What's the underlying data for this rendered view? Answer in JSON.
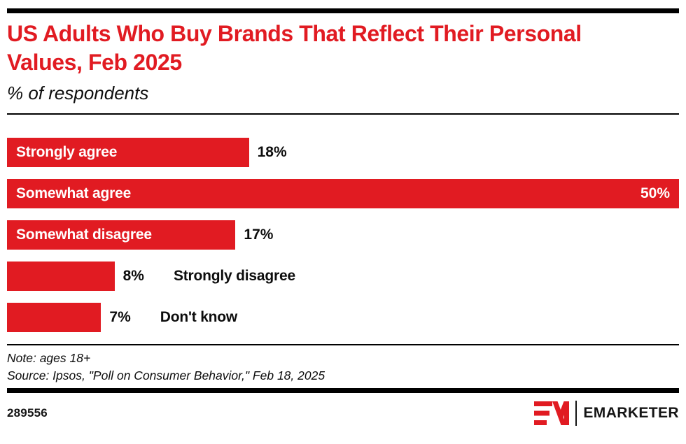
{
  "header": {
    "title": "US Adults Who Buy Brands That Reflect Their Personal Values, Feb 2025",
    "subtitle": "% of respondents"
  },
  "chart_data": {
    "type": "bar",
    "orientation": "horizontal",
    "title": "US Adults Who Buy Brands That Reflect Their Personal Values, Feb 2025",
    "subtitle": "% of respondents",
    "categories": [
      "Strongly agree",
      "Somewhat agree",
      "Somewhat disagree",
      "Strongly disagree",
      "Don't know"
    ],
    "values": [
      18,
      50,
      17,
      8,
      7
    ],
    "value_labels": [
      "18%",
      "50%",
      "17%",
      "8%",
      "7%"
    ],
    "xlim": [
      0,
      50
    ],
    "grid": false,
    "legend": "none",
    "bar_color": "#e11b22",
    "category_label_inside_bar": [
      true,
      true,
      true,
      false,
      false
    ],
    "value_label_inside_bar": [
      false,
      true,
      false,
      false,
      false
    ]
  },
  "footer": {
    "note": "Note: ages 18+",
    "source": "Source: Ipsos, \"Poll on Consumer Behavior,\" Feb 18, 2025",
    "chart_id": "289556",
    "logo_text": "EMARKETER"
  },
  "colors": {
    "accent_red": "#e11b22",
    "text_black": "#0d0d0d"
  }
}
